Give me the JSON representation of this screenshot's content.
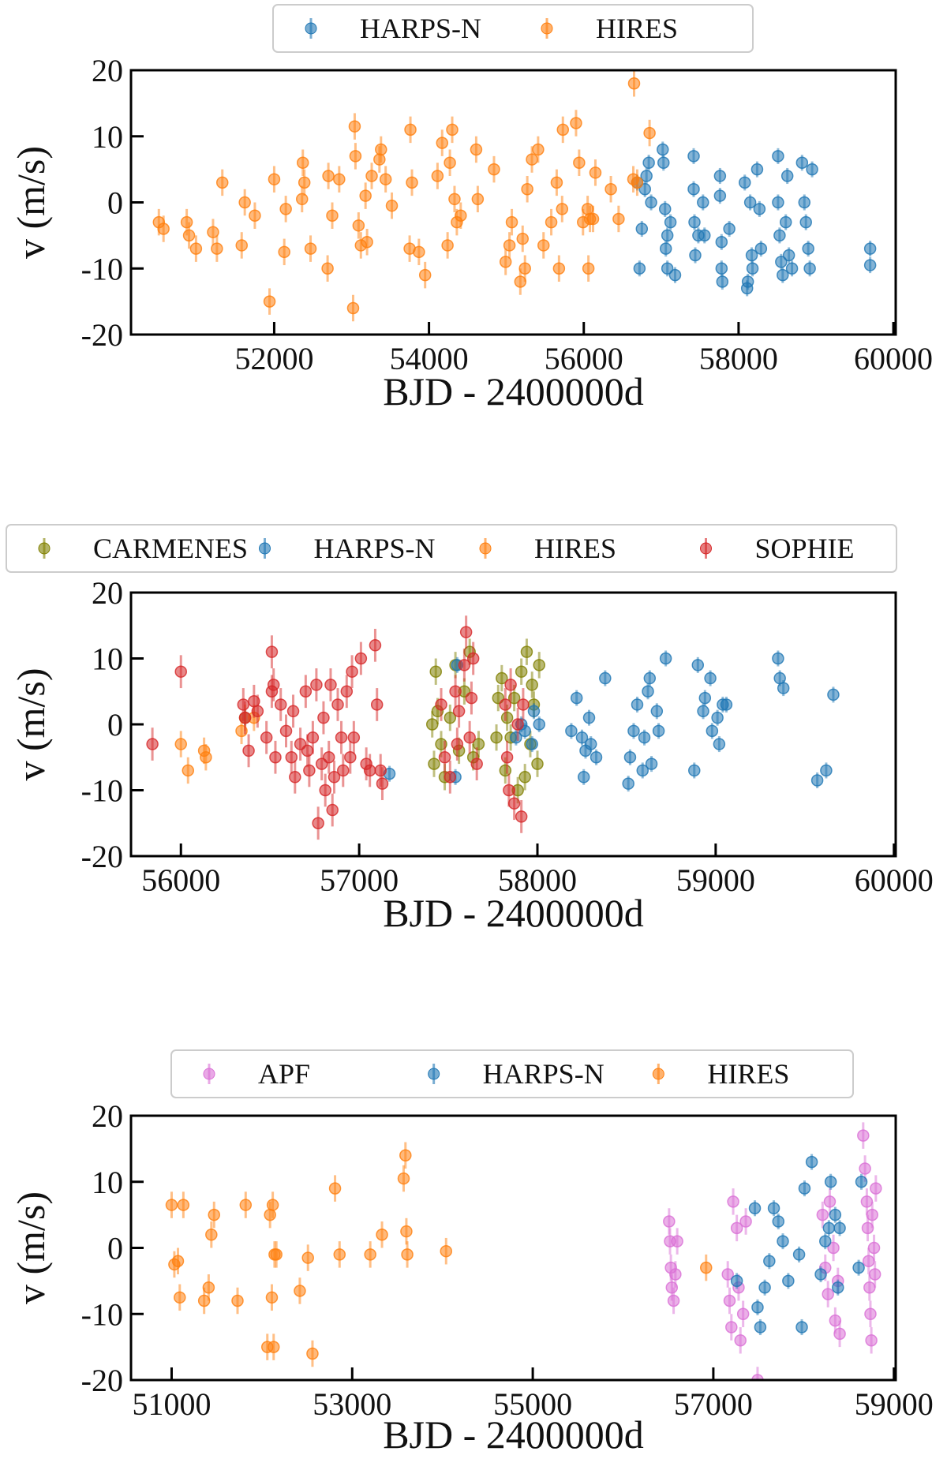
{
  "chart_data": [
    {
      "type": "scatter",
      "xlabel": "BJD - 2400000d",
      "ylabel": "v (m/s)",
      "legend": "top",
      "xlim": [
        50150,
        60030
      ],
      "ylim": [
        -20,
        20
      ],
      "xticks": [
        52000,
        54000,
        56000,
        58000,
        60000
      ],
      "yticks": [
        -20,
        -10,
        0,
        10,
        20
      ],
      "series": [
        {
          "name": "HARPS-N",
          "color": "#1f77b4",
          "error": 1.2,
          "x": [
            56690,
            56720,
            56750,
            56790,
            56810,
            56840,
            56870,
            57020,
            57030,
            57050,
            57060,
            57080,
            57080,
            57120,
            57180,
            57420,
            57420,
            57430,
            57440,
            57480,
            57540,
            57560,
            57760,
            57760,
            57780,
            57780,
            57790,
            57880,
            58080,
            58110,
            58120,
            58150,
            58170,
            58180,
            58240,
            58270,
            58290,
            58510,
            58510,
            58530,
            58550,
            58570,
            58610,
            58630,
            58650,
            58690,
            58820,
            58850,
            58870,
            58900,
            58920,
            58950,
            59700,
            59700
          ],
          "values": [
            3,
            -10,
            -4,
            2,
            4,
            6,
            0,
            8,
            6,
            -1,
            -7,
            -10,
            -5,
            -3,
            -11,
            7,
            2,
            -3,
            -8,
            -5,
            0,
            -5,
            4,
            1,
            -6,
            -10,
            -12,
            -4,
            3,
            -13,
            -12,
            0,
            -8,
            -10,
            5,
            -1,
            -7,
            7,
            0,
            -5,
            -9,
            -11,
            -3,
            4,
            -8,
            -10,
            6,
            0,
            -3,
            -7,
            -10,
            5,
            -7,
            -9.5
          ]
        },
        {
          "name": "HIRES",
          "color": "#ff7f0e",
          "error": 2,
          "x": [
            50510,
            50570,
            50870,
            50900,
            50990,
            51210,
            51260,
            51330,
            51580,
            51620,
            51750,
            51940,
            52000,
            52130,
            52150,
            52360,
            52370,
            52390,
            52470,
            52690,
            52700,
            52750,
            52840,
            53020,
            53040,
            53050,
            53090,
            53120,
            53180,
            53200,
            53260,
            53360,
            53380,
            53440,
            53520,
            53750,
            53760,
            53780,
            53870,
            53950,
            54110,
            54170,
            54240,
            54270,
            54300,
            54330,
            54360,
            54410,
            54610,
            54630,
            54840,
            54990,
            55040,
            55070,
            55180,
            55210,
            55240,
            55270,
            55330,
            55410,
            55480,
            55580,
            55650,
            55680,
            55720,
            55730,
            55900,
            55940,
            55990,
            56050,
            56060,
            56080,
            56120,
            56150,
            56350,
            56450,
            56640,
            56650,
            56690,
            56850
          ],
          "values": [
            -3,
            -4,
            -3,
            -5,
            -7,
            -4.5,
            -7,
            3,
            -6.5,
            0,
            -2,
            -15,
            3.5,
            -7.5,
            -1,
            0.5,
            6,
            3,
            -7,
            -10,
            4,
            -2,
            3.5,
            -16,
            11.5,
            7,
            -3.5,
            -6.5,
            1,
            -6,
            4,
            6.5,
            8,
            3.5,
            -0.5,
            -7,
            11,
            3,
            -7.5,
            -11,
            4,
            9,
            -6.5,
            6,
            11,
            0.5,
            -3,
            -2,
            8,
            0.5,
            5,
            -9,
            -6.5,
            -3,
            -12,
            -5.5,
            -10,
            2,
            6.5,
            8,
            -6.5,
            -3,
            3,
            -10,
            -1,
            11,
            12,
            6,
            -3,
            -1,
            -10,
            -2.5,
            -2.5,
            4.5,
            2,
            -2.5,
            3.5,
            18,
            3,
            10.5
          ]
        }
      ]
    },
    {
      "type": "scatter",
      "xlabel": "BJD - 2400000d",
      "ylabel": "v (m/s)",
      "legend": "top",
      "xlim": [
        55720,
        60010
      ],
      "ylim": [
        -20,
        20
      ],
      "xticks": [
        56000,
        57000,
        58000,
        59000,
        60000
      ],
      "yticks": [
        -20,
        -10,
        0,
        10,
        20
      ],
      "series": [
        {
          "name": "CARMENES",
          "color": "#808000",
          "error": 2,
          "x": [
            57410,
            57420,
            57430,
            57440,
            57460,
            57480,
            57510,
            57540,
            57560,
            57590,
            57620,
            57640,
            57670,
            57770,
            57780,
            57800,
            57820,
            57830,
            57850,
            57870,
            57890,
            57910,
            57930,
            57940,
            57960,
            57970,
            57980,
            58000,
            58010
          ],
          "values": [
            0,
            -6,
            8,
            2,
            -3,
            -8,
            1,
            9,
            -4,
            5,
            11,
            -5,
            -3,
            -2,
            4,
            7,
            -7,
            1,
            -2,
            4,
            -10,
            8,
            -8,
            11,
            -3,
            6,
            3,
            -6,
            9
          ]
        },
        {
          "name": "HARPS-N",
          "color": "#1f77b4",
          "error": 1.2,
          "x": [
            56360,
            57170,
            57540,
            57550,
            57880,
            57910,
            57930,
            57970,
            57980,
            58010,
            58190,
            58220,
            58250,
            58260,
            58270,
            58290,
            58300,
            58330,
            58380,
            58510,
            58520,
            58540,
            58560,
            58590,
            58600,
            58620,
            58630,
            58640,
            58670,
            58680,
            58720,
            58880,
            58900,
            58930,
            58940,
            58970,
            58980,
            59010,
            59020,
            59040,
            59060,
            59350,
            59360,
            59380,
            59570,
            59620,
            59660
          ],
          "values": [
            1,
            -7.5,
            -8,
            9,
            -2,
            0,
            -1,
            -3,
            2,
            0,
            -1,
            4,
            -2,
            -8,
            -4,
            1,
            -3,
            -5,
            7,
            -9,
            -5,
            -1,
            3,
            -7,
            -2,
            5,
            7,
            -6,
            2,
            -1,
            10,
            -7,
            9,
            2,
            4,
            7,
            -1,
            1,
            -3,
            3,
            3,
            10,
            7,
            5.5,
            -8.5,
            -7,
            4.5
          ]
        },
        {
          "name": "HIRES",
          "color": "#ff7f0e",
          "error": 2,
          "x": [
            56000,
            56040,
            56130,
            56140,
            56340,
            56360,
            56410
          ],
          "values": [
            -3,
            -7,
            -4,
            -5,
            -1,
            1,
            1
          ]
        },
        {
          "name": "SOPHIE",
          "color": "#d62728",
          "error": 2.5,
          "x": [
            55840,
            56000,
            56350,
            56360,
            56380,
            56410,
            56430,
            56480,
            56510,
            56510,
            56520,
            56530,
            56560,
            56590,
            56620,
            56630,
            56640,
            56670,
            56700,
            56710,
            56720,
            56740,
            56760,
            56770,
            56790,
            56800,
            56810,
            56830,
            56840,
            56850,
            56860,
            56880,
            56900,
            56910,
            56930,
            56950,
            56960,
            56970,
            57010,
            57040,
            57060,
            57090,
            57100,
            57120,
            57130,
            57460,
            57480,
            57510,
            57540,
            57550,
            57560,
            57590,
            57600,
            57620,
            57630,
            57640,
            57660,
            57820,
            57830,
            57840,
            57850,
            57870,
            57890,
            57910,
            57920
          ],
          "values": [
            -3,
            8,
            3,
            1,
            -4,
            3.5,
            2,
            -2,
            11,
            5,
            6,
            -5,
            3,
            -1,
            -5,
            2,
            -8,
            -3,
            5,
            -4,
            -7,
            -2,
            6,
            -15,
            -6,
            1,
            -10,
            -5,
            6,
            -13,
            -8,
            3,
            -2,
            -7,
            5,
            -5,
            8,
            -2,
            10,
            -6,
            -7,
            12,
            3,
            -7,
            -9,
            3,
            -5,
            -8,
            5,
            -3,
            2,
            9,
            14,
            -2,
            4,
            10,
            -6,
            3,
            -5,
            -10,
            6,
            -12,
            0,
            -14,
            3
          ]
        }
      ]
    },
    {
      "type": "scatter",
      "xlabel": "BJD - 2400000d",
      "ylabel": "v (m/s)",
      "legend": "top",
      "xlim": [
        50550,
        59020
      ],
      "ylim": [
        -20,
        20
      ],
      "xticks": [
        51000,
        53000,
        55000,
        57000,
        59000
      ],
      "yticks": [
        -20,
        -10,
        0,
        10,
        20
      ],
      "series": [
        {
          "name": "APF",
          "color": "#da70d6",
          "error": 2,
          "x": [
            56510,
            56520,
            56530,
            56540,
            56560,
            56580,
            56600,
            57160,
            57180,
            57200,
            57220,
            57260,
            57280,
            57300,
            57330,
            57360,
            57490,
            58210,
            58240,
            58270,
            58290,
            58330,
            58350,
            58380,
            58400,
            58660,
            58680,
            58700,
            58710,
            58720,
            58730,
            58740,
            58750,
            58760,
            58780,
            58790,
            58800
          ],
          "values": [
            4,
            1,
            -3,
            -6,
            -8,
            -4,
            1,
            -4,
            -8,
            -12,
            7,
            3,
            -6,
            -14,
            -10,
            4,
            -20,
            5,
            -3,
            -7,
            7,
            0,
            -11,
            -5,
            -13,
            17,
            12,
            7,
            3,
            -2,
            -6,
            -10,
            -14,
            5,
            0,
            -4,
            9
          ]
        },
        {
          "name": "HARPS-N",
          "color": "#1f77b4",
          "error": 1.2,
          "x": [
            57260,
            57460,
            57490,
            57520,
            57570,
            57620,
            57670,
            57720,
            57770,
            57830,
            57950,
            57980,
            58010,
            58090,
            58190,
            58240,
            58280,
            58300,
            58350,
            58380,
            58400,
            58610,
            58640
          ],
          "values": [
            -5,
            6,
            -9,
            -12,
            -6,
            -2,
            6,
            4,
            1,
            -5,
            -1,
            -12,
            9,
            13,
            -4,
            1,
            3,
            10,
            5,
            -6,
            3,
            -3,
            10
          ]
        },
        {
          "name": "HIRES",
          "color": "#ff7f0e",
          "error": 2,
          "x": [
            51000,
            51030,
            51070,
            51090,
            51130,
            51360,
            51410,
            51440,
            51470,
            51730,
            51820,
            52060,
            52090,
            52110,
            52120,
            52130,
            52140,
            52160,
            52420,
            52510,
            52560,
            52810,
            52860,
            53200,
            53330,
            53570,
            53590,
            53600,
            53610,
            54040,
            56920
          ],
          "values": [
            6.5,
            -2.5,
            -2,
            -7.5,
            6.5,
            -8,
            -6,
            2,
            5,
            -8,
            6.5,
            -15,
            5,
            -7.5,
            6.5,
            -15,
            -1,
            -1,
            -6.5,
            -1.5,
            -16,
            9,
            -1,
            -1,
            2,
            10.5,
            14,
            2.5,
            -1,
            -0.5,
            -3
          ]
        }
      ]
    }
  ]
}
